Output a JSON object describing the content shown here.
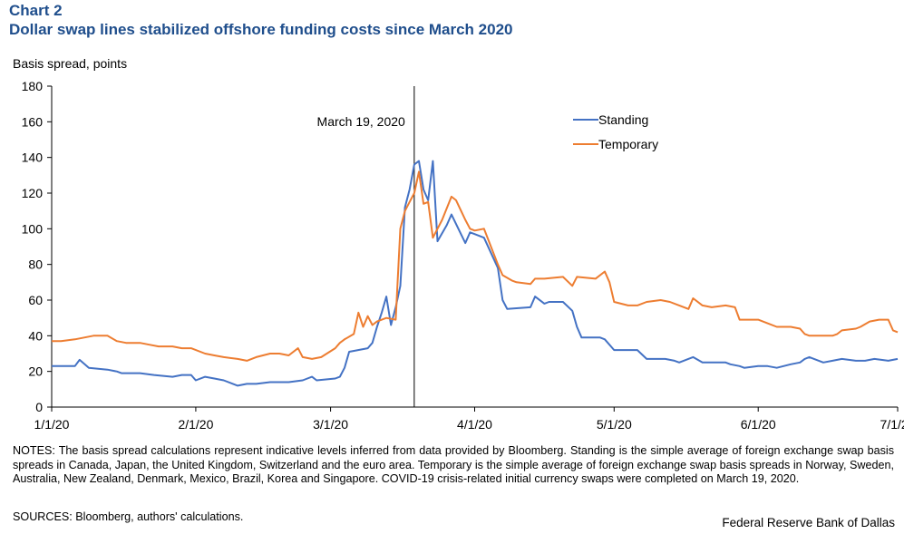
{
  "header": {
    "chart_label": "Chart 2",
    "title": "Dollar swap lines stabilized offshore funding costs since March 2020",
    "unit_label": "Basis spread, points"
  },
  "footer": {
    "notes": "NOTES: The basis spread calculations represent indicative levels inferred from data provided by Bloomberg. Standing is the simple average of foreign exchange swap basis spreads in Canada, Japan, the United Kingdom, Switzerland and the euro area. Temporary is the simple average of foreign exchange swap basis spreads in Norway, Sweden, Australia, New Zealand, Denmark, Mexico, Brazil, Korea and Singapore. COVID-19 crisis-related initial currency swaps were completed on March 19, 2020.",
    "sources": "SOURCES: Bloomberg, authors' calculations.",
    "credit": "Federal Reserve Bank of Dallas"
  },
  "colors": {
    "standing": "#4472c4",
    "temporary": "#ed7d31",
    "title": "#1f4e8c"
  },
  "chart_data": {
    "type": "line",
    "title": "Dollar swap lines stabilized offshore funding costs since March 2020",
    "xlabel": "",
    "ylabel": "Basis spread, points",
    "x_axis_type": "date",
    "xlim": [
      "2020-01-01",
      "2020-07-01"
    ],
    "ylim": [
      0,
      180
    ],
    "yticks": [
      0,
      20,
      40,
      60,
      80,
      100,
      120,
      140,
      160,
      180
    ],
    "xticks": [
      {
        "date": "2020-01-01",
        "label": "1/1/20"
      },
      {
        "date": "2020-02-01",
        "label": "2/1/20"
      },
      {
        "date": "2020-03-01",
        "label": "3/1/20"
      },
      {
        "date": "2020-04-01",
        "label": "4/1/20"
      },
      {
        "date": "2020-05-01",
        "label": "5/1/20"
      },
      {
        "date": "2020-06-01",
        "label": "6/1/20"
      },
      {
        "date": "2020-07-01",
        "label": "7/1/20"
      }
    ],
    "grid": false,
    "legend": "top-right",
    "annotation": {
      "date": "2020-03-19",
      "label": "March 19, 2020"
    },
    "series": [
      {
        "name": "Standing",
        "color": "#4472c4",
        "points": [
          [
            "2020-01-01",
            23
          ],
          [
            "2020-01-03",
            23
          ],
          [
            "2020-01-06",
            23
          ],
          [
            "2020-01-07",
            26.5
          ],
          [
            "2020-01-09",
            22
          ],
          [
            "2020-01-13",
            21
          ],
          [
            "2020-01-15",
            20
          ],
          [
            "2020-01-16",
            19
          ],
          [
            "2020-01-20",
            19
          ],
          [
            "2020-01-23",
            18
          ],
          [
            "2020-01-27",
            17
          ],
          [
            "2020-01-29",
            18
          ],
          [
            "2020-01-31",
            18
          ],
          [
            "2020-02-01",
            15
          ],
          [
            "2020-02-03",
            17
          ],
          [
            "2020-02-05",
            16
          ],
          [
            "2020-02-07",
            15
          ],
          [
            "2020-02-10",
            12
          ],
          [
            "2020-02-12",
            13
          ],
          [
            "2020-02-14",
            13
          ],
          [
            "2020-02-17",
            14
          ],
          [
            "2020-02-19",
            14
          ],
          [
            "2020-02-21",
            14
          ],
          [
            "2020-02-24",
            15
          ],
          [
            "2020-02-25",
            16
          ],
          [
            "2020-02-26",
            17
          ],
          [
            "2020-02-27",
            15
          ],
          [
            "2020-03-02",
            16
          ],
          [
            "2020-03-03",
            17
          ],
          [
            "2020-03-04",
            22
          ],
          [
            "2020-03-05",
            31
          ],
          [
            "2020-03-09",
            33
          ],
          [
            "2020-03-10",
            36
          ],
          [
            "2020-03-11",
            45
          ],
          [
            "2020-03-12",
            53
          ],
          [
            "2020-03-13",
            62
          ],
          [
            "2020-03-14",
            46
          ],
          [
            "2020-03-15",
            56
          ],
          [
            "2020-03-16",
            68
          ],
          [
            "2020-03-17",
            112
          ],
          [
            "2020-03-18",
            122
          ],
          [
            "2020-03-19",
            136
          ],
          [
            "2020-03-20",
            138
          ],
          [
            "2020-03-21",
            122
          ],
          [
            "2020-03-22",
            116
          ],
          [
            "2020-03-23",
            138
          ],
          [
            "2020-03-24",
            93
          ],
          [
            "2020-03-26",
            102
          ],
          [
            "2020-03-27",
            108
          ],
          [
            "2020-03-30",
            92
          ],
          [
            "2020-03-31",
            98
          ],
          [
            "2020-04-01",
            97
          ],
          [
            "2020-04-03",
            95
          ],
          [
            "2020-04-06",
            78
          ],
          [
            "2020-04-07",
            60
          ],
          [
            "2020-04-08",
            55
          ],
          [
            "2020-04-13",
            56
          ],
          [
            "2020-04-14",
            62
          ],
          [
            "2020-04-16",
            58
          ],
          [
            "2020-04-17",
            59
          ],
          [
            "2020-04-20",
            59
          ],
          [
            "2020-04-22",
            54
          ],
          [
            "2020-04-23",
            45
          ],
          [
            "2020-04-24",
            39
          ],
          [
            "2020-04-28",
            39
          ],
          [
            "2020-04-29",
            38
          ],
          [
            "2020-05-01",
            32
          ],
          [
            "2020-05-04",
            32
          ],
          [
            "2020-05-06",
            32
          ],
          [
            "2020-05-08",
            27
          ],
          [
            "2020-05-12",
            27
          ],
          [
            "2020-05-14",
            26
          ],
          [
            "2020-05-15",
            25
          ],
          [
            "2020-05-18",
            28
          ],
          [
            "2020-05-20",
            25
          ],
          [
            "2020-05-22",
            25
          ],
          [
            "2020-05-25",
            25
          ],
          [
            "2020-05-26",
            24
          ],
          [
            "2020-05-28",
            23
          ],
          [
            "2020-05-29",
            22
          ],
          [
            "2020-06-01",
            23
          ],
          [
            "2020-06-03",
            23
          ],
          [
            "2020-06-05",
            22
          ],
          [
            "2020-06-08",
            24
          ],
          [
            "2020-06-10",
            25
          ],
          [
            "2020-06-11",
            27
          ],
          [
            "2020-06-12",
            28
          ],
          [
            "2020-06-15",
            25
          ],
          [
            "2020-06-17",
            26
          ],
          [
            "2020-06-19",
            27
          ],
          [
            "2020-06-22",
            26
          ],
          [
            "2020-06-24",
            26
          ],
          [
            "2020-06-26",
            27
          ],
          [
            "2020-06-29",
            26
          ],
          [
            "2020-07-01",
            27
          ]
        ]
      },
      {
        "name": "Temporary",
        "color": "#ed7d31",
        "points": [
          [
            "2020-01-01",
            37
          ],
          [
            "2020-01-03",
            37
          ],
          [
            "2020-01-06",
            38
          ],
          [
            "2020-01-08",
            39
          ],
          [
            "2020-01-10",
            40
          ],
          [
            "2020-01-13",
            40
          ],
          [
            "2020-01-15",
            37
          ],
          [
            "2020-01-17",
            36
          ],
          [
            "2020-01-20",
            36
          ],
          [
            "2020-01-22",
            35
          ],
          [
            "2020-01-24",
            34
          ],
          [
            "2020-01-27",
            34
          ],
          [
            "2020-01-29",
            33
          ],
          [
            "2020-01-31",
            33
          ],
          [
            "2020-02-03",
            30
          ],
          [
            "2020-02-05",
            29
          ],
          [
            "2020-02-07",
            28
          ],
          [
            "2020-02-10",
            27
          ],
          [
            "2020-02-12",
            26
          ],
          [
            "2020-02-14",
            28
          ],
          [
            "2020-02-17",
            30
          ],
          [
            "2020-02-19",
            30
          ],
          [
            "2020-02-21",
            29
          ],
          [
            "2020-02-23",
            33
          ],
          [
            "2020-02-24",
            28
          ],
          [
            "2020-02-26",
            27
          ],
          [
            "2020-02-28",
            28
          ],
          [
            "2020-03-02",
            33
          ],
          [
            "2020-03-03",
            36
          ],
          [
            "2020-03-04",
            38
          ],
          [
            "2020-03-06",
            41
          ],
          [
            "2020-03-07",
            53
          ],
          [
            "2020-03-08",
            45
          ],
          [
            "2020-03-09",
            51
          ],
          [
            "2020-03-10",
            46
          ],
          [
            "2020-03-11",
            48
          ],
          [
            "2020-03-13",
            50
          ],
          [
            "2020-03-15",
            49
          ],
          [
            "2020-03-16",
            100
          ],
          [
            "2020-03-17",
            110
          ],
          [
            "2020-03-18",
            115
          ],
          [
            "2020-03-19",
            120
          ],
          [
            "2020-03-20",
            132
          ],
          [
            "2020-03-21",
            114
          ],
          [
            "2020-03-22",
            115
          ],
          [
            "2020-03-23",
            95
          ],
          [
            "2020-03-25",
            105
          ],
          [
            "2020-03-27",
            118
          ],
          [
            "2020-03-28",
            116
          ],
          [
            "2020-03-30",
            105
          ],
          [
            "2020-03-31",
            100
          ],
          [
            "2020-04-01",
            99
          ],
          [
            "2020-04-03",
            100
          ],
          [
            "2020-04-06",
            80
          ],
          [
            "2020-04-07",
            74
          ],
          [
            "2020-04-09",
            71
          ],
          [
            "2020-04-10",
            70
          ],
          [
            "2020-04-13",
            69
          ],
          [
            "2020-04-14",
            72
          ],
          [
            "2020-04-16",
            72
          ],
          [
            "2020-04-20",
            73
          ],
          [
            "2020-04-22",
            68
          ],
          [
            "2020-04-23",
            73
          ],
          [
            "2020-04-27",
            72
          ],
          [
            "2020-04-29",
            76
          ],
          [
            "2020-04-30",
            70
          ],
          [
            "2020-05-01",
            59
          ],
          [
            "2020-05-04",
            57
          ],
          [
            "2020-05-06",
            57
          ],
          [
            "2020-05-08",
            59
          ],
          [
            "2020-05-11",
            60
          ],
          [
            "2020-05-13",
            59
          ],
          [
            "2020-05-15",
            57
          ],
          [
            "2020-05-17",
            55
          ],
          [
            "2020-05-18",
            61
          ],
          [
            "2020-05-20",
            57
          ],
          [
            "2020-05-22",
            56
          ],
          [
            "2020-05-25",
            57
          ],
          [
            "2020-05-27",
            56
          ],
          [
            "2020-05-28",
            49
          ],
          [
            "2020-06-01",
            49
          ],
          [
            "2020-06-03",
            47
          ],
          [
            "2020-06-05",
            45
          ],
          [
            "2020-06-08",
            45
          ],
          [
            "2020-06-10",
            44
          ],
          [
            "2020-06-11",
            41
          ],
          [
            "2020-06-12",
            40
          ],
          [
            "2020-06-15",
            40
          ],
          [
            "2020-06-17",
            40
          ],
          [
            "2020-06-18",
            41
          ],
          [
            "2020-06-19",
            43
          ],
          [
            "2020-06-22",
            44
          ],
          [
            "2020-06-23",
            45
          ],
          [
            "2020-06-25",
            48
          ],
          [
            "2020-06-27",
            49
          ],
          [
            "2020-06-29",
            49
          ],
          [
            "2020-06-30",
            43
          ],
          [
            "2020-07-01",
            42
          ]
        ]
      }
    ]
  }
}
